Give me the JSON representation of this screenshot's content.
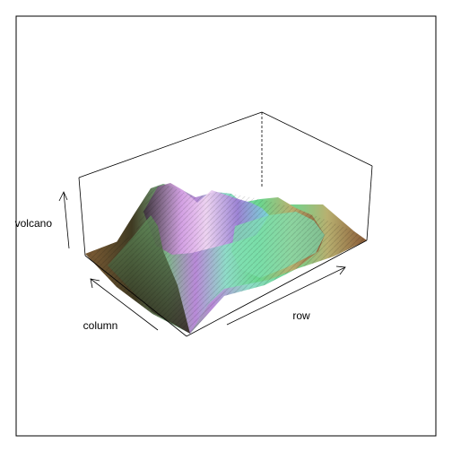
{
  "chart_data": {
    "type": "surface3d",
    "dataset": "volcano",
    "xlabel": "row",
    "ylabel": "column",
    "zlabel": "volcano",
    "colors": {
      "low": "#6b4a2b",
      "mid_green": "#8fd46a",
      "teal": "#5fe0a8",
      "cyan": "#7fd8e8",
      "violet": "#b07ad8",
      "magenta": "#e07ae0",
      "peak_light": "#f0e0f0",
      "frame": "#000000"
    },
    "grid": false,
    "legend": "none",
    "shading": "light"
  }
}
